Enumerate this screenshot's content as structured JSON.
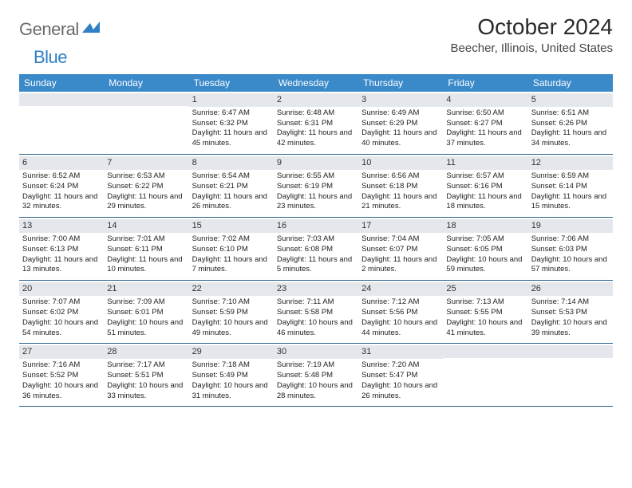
{
  "logo": {
    "text_gray": "General",
    "text_blue": "Blue"
  },
  "title": "October 2024",
  "location": "Beecher, Illinois, United States",
  "colors": {
    "header_bg": "#3a89c9",
    "header_text": "#ffffff",
    "band_bg": "#e4e8ec",
    "rule": "#2b5f8a",
    "logo_gray": "#6b6b6b",
    "logo_blue": "#2f7fc5"
  },
  "day_names": [
    "Sunday",
    "Monday",
    "Tuesday",
    "Wednesday",
    "Thursday",
    "Friday",
    "Saturday"
  ],
  "weeks": [
    [
      null,
      null,
      {
        "n": "1",
        "sr": "6:47 AM",
        "ss": "6:32 PM",
        "dl": "11 hours and 45 minutes."
      },
      {
        "n": "2",
        "sr": "6:48 AM",
        "ss": "6:31 PM",
        "dl": "11 hours and 42 minutes."
      },
      {
        "n": "3",
        "sr": "6:49 AM",
        "ss": "6:29 PM",
        "dl": "11 hours and 40 minutes."
      },
      {
        "n": "4",
        "sr": "6:50 AM",
        "ss": "6:27 PM",
        "dl": "11 hours and 37 minutes."
      },
      {
        "n": "5",
        "sr": "6:51 AM",
        "ss": "6:26 PM",
        "dl": "11 hours and 34 minutes."
      }
    ],
    [
      {
        "n": "6",
        "sr": "6:52 AM",
        "ss": "6:24 PM",
        "dl": "11 hours and 32 minutes."
      },
      {
        "n": "7",
        "sr": "6:53 AM",
        "ss": "6:22 PM",
        "dl": "11 hours and 29 minutes."
      },
      {
        "n": "8",
        "sr": "6:54 AM",
        "ss": "6:21 PM",
        "dl": "11 hours and 26 minutes."
      },
      {
        "n": "9",
        "sr": "6:55 AM",
        "ss": "6:19 PM",
        "dl": "11 hours and 23 minutes."
      },
      {
        "n": "10",
        "sr": "6:56 AM",
        "ss": "6:18 PM",
        "dl": "11 hours and 21 minutes."
      },
      {
        "n": "11",
        "sr": "6:57 AM",
        "ss": "6:16 PM",
        "dl": "11 hours and 18 minutes."
      },
      {
        "n": "12",
        "sr": "6:59 AM",
        "ss": "6:14 PM",
        "dl": "11 hours and 15 minutes."
      }
    ],
    [
      {
        "n": "13",
        "sr": "7:00 AM",
        "ss": "6:13 PM",
        "dl": "11 hours and 13 minutes."
      },
      {
        "n": "14",
        "sr": "7:01 AM",
        "ss": "6:11 PM",
        "dl": "11 hours and 10 minutes."
      },
      {
        "n": "15",
        "sr": "7:02 AM",
        "ss": "6:10 PM",
        "dl": "11 hours and 7 minutes."
      },
      {
        "n": "16",
        "sr": "7:03 AM",
        "ss": "6:08 PM",
        "dl": "11 hours and 5 minutes."
      },
      {
        "n": "17",
        "sr": "7:04 AM",
        "ss": "6:07 PM",
        "dl": "11 hours and 2 minutes."
      },
      {
        "n": "18",
        "sr": "7:05 AM",
        "ss": "6:05 PM",
        "dl": "10 hours and 59 minutes."
      },
      {
        "n": "19",
        "sr": "7:06 AM",
        "ss": "6:03 PM",
        "dl": "10 hours and 57 minutes."
      }
    ],
    [
      {
        "n": "20",
        "sr": "7:07 AM",
        "ss": "6:02 PM",
        "dl": "10 hours and 54 minutes."
      },
      {
        "n": "21",
        "sr": "7:09 AM",
        "ss": "6:01 PM",
        "dl": "10 hours and 51 minutes."
      },
      {
        "n": "22",
        "sr": "7:10 AM",
        "ss": "5:59 PM",
        "dl": "10 hours and 49 minutes."
      },
      {
        "n": "23",
        "sr": "7:11 AM",
        "ss": "5:58 PM",
        "dl": "10 hours and 46 minutes."
      },
      {
        "n": "24",
        "sr": "7:12 AM",
        "ss": "5:56 PM",
        "dl": "10 hours and 44 minutes."
      },
      {
        "n": "25",
        "sr": "7:13 AM",
        "ss": "5:55 PM",
        "dl": "10 hours and 41 minutes."
      },
      {
        "n": "26",
        "sr": "7:14 AM",
        "ss": "5:53 PM",
        "dl": "10 hours and 39 minutes."
      }
    ],
    [
      {
        "n": "27",
        "sr": "7:16 AM",
        "ss": "5:52 PM",
        "dl": "10 hours and 36 minutes."
      },
      {
        "n": "28",
        "sr": "7:17 AM",
        "ss": "5:51 PM",
        "dl": "10 hours and 33 minutes."
      },
      {
        "n": "29",
        "sr": "7:18 AM",
        "ss": "5:49 PM",
        "dl": "10 hours and 31 minutes."
      },
      {
        "n": "30",
        "sr": "7:19 AM",
        "ss": "5:48 PM",
        "dl": "10 hours and 28 minutes."
      },
      {
        "n": "31",
        "sr": "7:20 AM",
        "ss": "5:47 PM",
        "dl": "10 hours and 26 minutes."
      },
      null,
      null
    ]
  ],
  "labels": {
    "sunrise": "Sunrise:",
    "sunset": "Sunset:",
    "daylight": "Daylight:"
  }
}
